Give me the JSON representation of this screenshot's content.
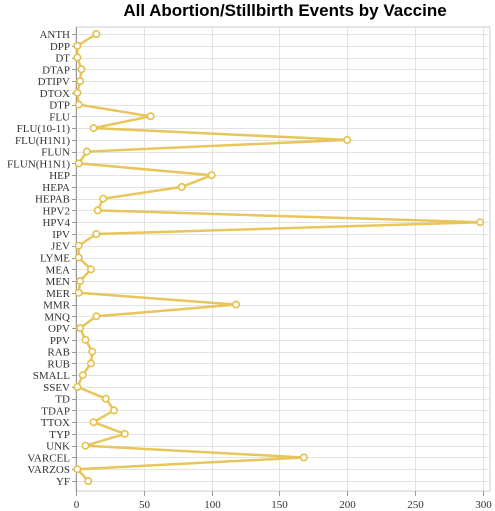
{
  "chart_data": {
    "type": "line",
    "title": "All Abortion/Stillbirth Events by Vaccine",
    "orientation": "horizontal",
    "xlim": [
      0,
      300
    ],
    "xticks": [
      0,
      50,
      100,
      150,
      200,
      250,
      300
    ],
    "grid": true,
    "line_color": "#e5c04a",
    "point_fill": "#ffffff",
    "categories": [
      "ANTH",
      "DPP",
      "DT",
      "DTAP",
      "DTIPV",
      "DTOX",
      "DTP",
      "FLU",
      "FLU(10-11)",
      "FLU(H1N1)",
      "FLUN",
      "FLUN(H1N1)",
      "HEP",
      "HEPA",
      "HEPAB",
      "HPV2",
      "HPV4",
      "IPV",
      "JEV",
      "LYME",
      "MEA",
      "MEN",
      "MER",
      "MMR",
      "MNQ",
      "OPV",
      "PPV",
      "RAB",
      "RUB",
      "SMALL",
      "SSEV",
      "TD",
      "TDAP",
      "TTOX",
      "TYP",
      "UNK",
      "VARCEL",
      "VARZOS",
      "YF"
    ],
    "values": [
      15,
      1,
      1,
      4,
      3,
      1,
      2,
      55,
      13,
      200,
      8,
      2,
      100,
      78,
      20,
      16,
      298,
      15,
      2,
      2,
      11,
      3,
      2,
      118,
      15,
      3,
      7,
      12,
      11,
      5,
      1,
      22,
      28,
      13,
      36,
      7,
      168,
      1,
      9
    ]
  }
}
